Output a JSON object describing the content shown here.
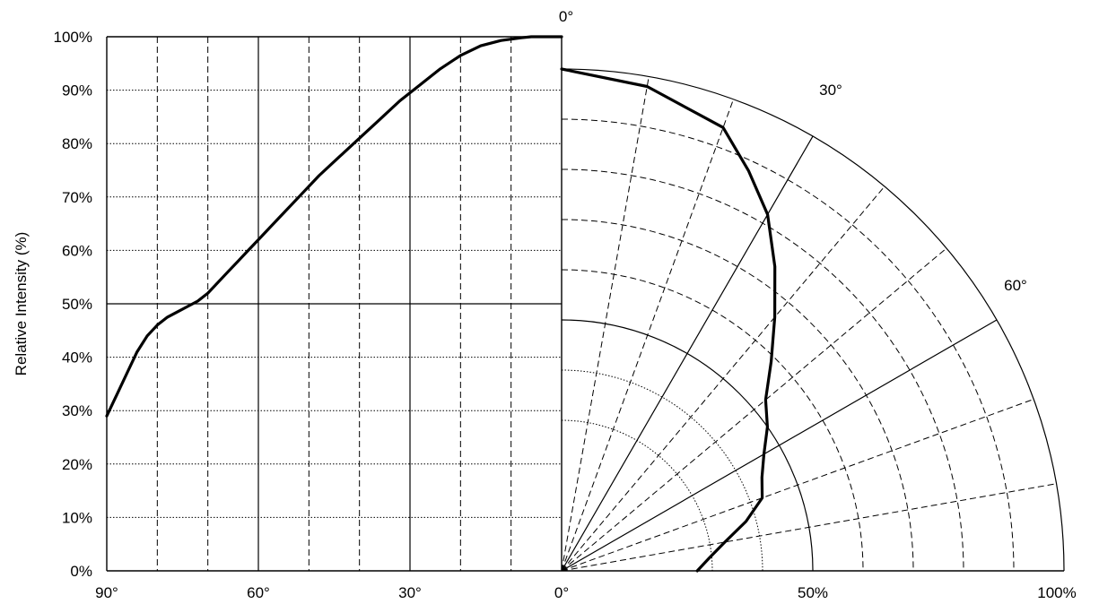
{
  "chart_data": {
    "type": "line",
    "title": "",
    "ylabel": "Relative Intensity (%)",
    "y_ticks": [
      "0%",
      "10%",
      "20%",
      "30%",
      "40%",
      "50%",
      "60%",
      "70%",
      "80%",
      "90%",
      "100%"
    ],
    "x_ticks": [
      "90°",
      "60°",
      "30°",
      "0°"
    ],
    "radial_ticks": [
      "0°",
      "50%",
      "100%"
    ],
    "polar_angle_labels": [
      "0°",
      "30°",
      "60°"
    ],
    "cartesian": {
      "x_unit": "angle (deg)",
      "xlim": [
        90,
        0
      ],
      "ylim": [
        0,
        100
      ],
      "x_gridlines_solid": [
        60,
        30
      ],
      "x_gridlines_dashed": [
        80,
        70,
        50,
        40,
        20,
        10
      ],
      "y_gridline_solid": 50,
      "series": [
        {
          "x": [
            90,
            88,
            86,
            84,
            82,
            80,
            78,
            76,
            74,
            72,
            70,
            68,
            66,
            64,
            62,
            60,
            56,
            52,
            48,
            44,
            40,
            36,
            32,
            28,
            24,
            20,
            16,
            12,
            8,
            6,
            4,
            2,
            0
          ],
          "y": [
            29,
            33,
            37,
            41,
            44,
            46,
            47.5,
            48.5,
            49.5,
            50.5,
            52,
            54,
            56,
            58,
            60,
            62,
            66,
            70,
            74,
            77.5,
            81,
            84.5,
            88,
            91,
            94,
            96.5,
            98.3,
            99.3,
            99.8,
            100,
            100,
            100,
            100
          ]
        }
      ]
    },
    "polar": {
      "rlim": [
        0,
        100
      ],
      "ring_style": {
        "solid": [
          50,
          100
        ],
        "dotted": [
          30,
          40
        ],
        "dashed": [
          60,
          70,
          80,
          90
        ]
      },
      "angle_lines_solid": [
        30,
        60
      ],
      "angle_lines_dashed": [
        10,
        20,
        40,
        50,
        70,
        80
      ],
      "series": [
        {
          "angle": [
            0,
            10,
            20,
            25,
            30,
            35,
            40,
            45,
            50,
            55,
            60,
            65,
            70,
            75,
            80,
            85,
            90
          ],
          "r": [
            100,
            98,
            94,
            88,
            82,
            74,
            66,
            59,
            53,
            50,
            46.5,
            44,
            42.5,
            38,
            33,
            29.5,
            27
          ]
        }
      ]
    }
  }
}
